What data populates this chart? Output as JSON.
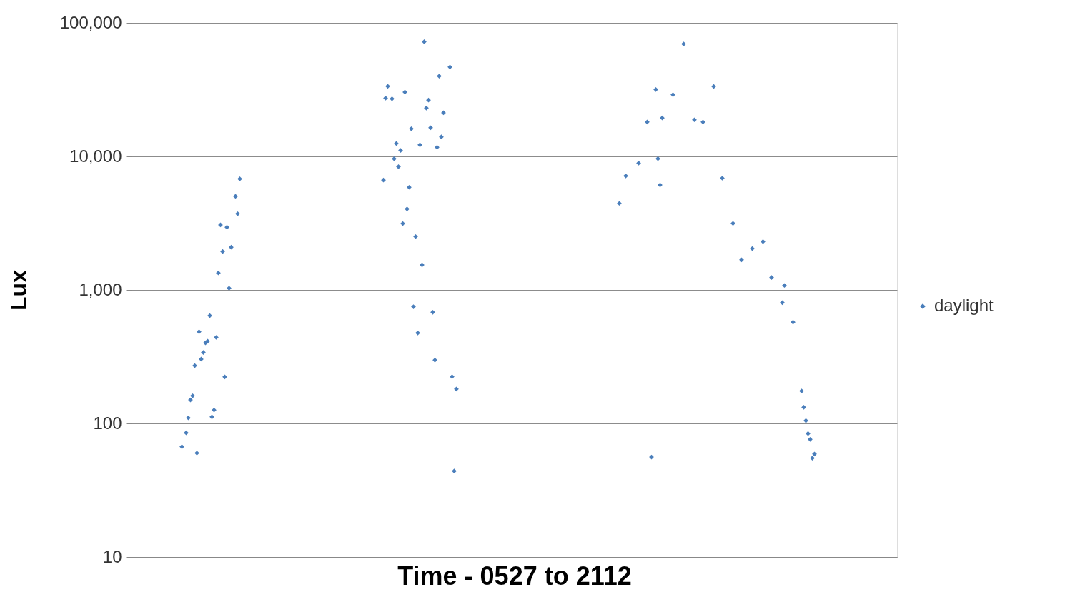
{
  "chart_data": {
    "type": "scatter",
    "xlabel": "Time - 0527 to 2112",
    "ylabel": "Lux",
    "log": "y",
    "grid": "y",
    "legend": "right",
    "marker": "diamond",
    "tick_labels": "y",
    "ylim": [
      10,
      100000
    ],
    "yticks": [
      {
        "value": 10,
        "label": "10"
      },
      {
        "value": 100,
        "label": "100"
      },
      {
        "value": 1000,
        "label": "1,000"
      },
      {
        "value": 10000,
        "label": "10,000"
      },
      {
        "value": 100000,
        "label": "100,000"
      }
    ],
    "categories": [
      null,
      null,
      null,
      null,
      null,
      null,
      null,
      null,
      null,
      null,
      null,
      null,
      null,
      null,
      null,
      null,
      null,
      null,
      null,
      null,
      null,
      null,
      null,
      null,
      null,
      null,
      null,
      null,
      null,
      null,
      null,
      null,
      null,
      null,
      null,
      null,
      null,
      null,
      null,
      null,
      null,
      null,
      null,
      null,
      null,
      null,
      null,
      null,
      null,
      null,
      null,
      null,
      null,
      null,
      null,
      null,
      null,
      null,
      null,
      null,
      null,
      null,
      null,
      null,
      null,
      null,
      null,
      null,
      null,
      null,
      null,
      null,
      null,
      null,
      null,
      null,
      null,
      null,
      null,
      null,
      null,
      null,
      null,
      null,
      null,
      null,
      null,
      null,
      null,
      null,
      null,
      null,
      null,
      null,
      null,
      null,
      null,
      null,
      null,
      null,
      null,
      null,
      null,
      null,
      null,
      null,
      null,
      null,
      null,
      null,
      null,
      null,
      null,
      null,
      null,
      null,
      null,
      null,
      null,
      null,
      null,
      null,
      null,
      null,
      null,
      null,
      null,
      null,
      null,
      null,
      null,
      null,
      null,
      null,
      null,
      null,
      null,
      null,
      null,
      null,
      null,
      null,
      null,
      null,
      null,
      null,
      null,
      null,
      null,
      null,
      null,
      null,
      null,
      null,
      null,
      null,
      null,
      null,
      null,
      null,
      null,
      null,
      null,
      null,
      null,
      null,
      null,
      null,
      null,
      null,
      null,
      null,
      null,
      null,
      null,
      null,
      null,
      null,
      null,
      null,
      null,
      null,
      null,
      null,
      null,
      null,
      null,
      null,
      null,
      null,
      null,
      null,
      null,
      null,
      null,
      null,
      null,
      null,
      null,
      null,
      null,
      null,
      null,
      null,
      null,
      null,
      null,
      null,
      null,
      null,
      null,
      null,
      null,
      null,
      null,
      null,
      null,
      null,
      null,
      null,
      null,
      null,
      null,
      null,
      null,
      null,
      null,
      null,
      null,
      null,
      null,
      null,
      null,
      null,
      null,
      null,
      null,
      null,
      null,
      null,
      null,
      null,
      null,
      null,
      null,
      null,
      null,
      null,
      null,
      null,
      null,
      null,
      null,
      null,
      null,
      null,
      null,
      null,
      null,
      null,
      null,
      null,
      null,
      null,
      null,
      null,
      null,
      null,
      null,
      null,
      null,
      null,
      null,
      null,
      null,
      null,
      null,
      null,
      null,
      null,
      null,
      null,
      null,
      null,
      null,
      null,
      null,
      null,
      null,
      null,
      null,
      null,
      null,
      null,
      null,
      null,
      null,
      null,
      null,
      null,
      null,
      null,
      null,
      null,
      null,
      null,
      null,
      null,
      null,
      null,
      null,
      null,
      null,
      null,
      null,
      null,
      null,
      null,
      null,
      null,
      null,
      null,
      null,
      null,
      null,
      null,
      null,
      null,
      null,
      null,
      null,
      null,
      null,
      null,
      null,
      null,
      null,
      null,
      null,
      null,
      null,
      null,
      null,
      null,
      null,
      null,
      null,
      null,
      null,
      null,
      null,
      null,
      null,
      null,
      null,
      null,
      null
    ],
    "series": [
      {
        "name": "daylight",
        "color": "#4a7ebb",
        "values": [
          null,
          null,
          null,
          null,
          null,
          null,
          null,
          null,
          null,
          null,
          null,
          null,
          null,
          null,
          null,
          null,
          null,
          null,
          null,
          null,
          null,
          null,
          null,
          67,
          null,
          85,
          110,
          150,
          161,
          271,
          60,
          486,
          303,
          340,
          401,
          413,
          641,
          112,
          126,
          441,
          1340,
          3070,
          1940,
          223,
          2950,
          1030,
          2090,
          null,
          5020,
          3720,
          6790,
          null,
          null,
          null,
          null,
          null,
          null,
          null,
          null,
          null,
          null,
          null,
          null,
          null,
          null,
          null,
          null,
          null,
          null,
          null,
          null,
          null,
          null,
          null,
          null,
          null,
          null,
          null,
          null,
          null,
          null,
          null,
          null,
          null,
          null,
          null,
          null,
          null,
          null,
          null,
          null,
          null,
          null,
          null,
          null,
          null,
          null,
          null,
          null,
          null,
          null,
          null,
          null,
          null,
          null,
          null,
          null,
          null,
          null,
          null,
          null,
          null,
          null,
          null,
          null,
          null,
          null,
          6650,
          27300,
          33500,
          null,
          27000,
          9600,
          12500,
          8370,
          11100,
          3140,
          30300,
          4040,
          5870,
          16100,
          748,
          2510,
          476,
          12200,
          1540,
          72200,
          23000,
          26400,
          16400,
          680,
          298,
          11700,
          39900,
          14000,
          21200,
          null,
          null,
          46700,
          224,
          44,
          181,
          null,
          null,
          null,
          null,
          null,
          null,
          null,
          null,
          null,
          null,
          null,
          null,
          null,
          null,
          null,
          null,
          null,
          null,
          null,
          null,
          null,
          null,
          null,
          null,
          null,
          null,
          null,
          null,
          null,
          null,
          null,
          null,
          null,
          null,
          null,
          null,
          null,
          null,
          null,
          null,
          null,
          null,
          null,
          null,
          null,
          null,
          null,
          null,
          null,
          null,
          null,
          null,
          null,
          null,
          null,
          null,
          null,
          null,
          null,
          null,
          null,
          null,
          null,
          null,
          null,
          null,
          null,
          null,
          null,
          null,
          null,
          null,
          null,
          null,
          null,
          4450,
          null,
          null,
          7140,
          null,
          null,
          null,
          null,
          null,
          8900,
          null,
          null,
          null,
          18100,
          null,
          56,
          null,
          31700,
          9620,
          6110,
          19400,
          null,
          null,
          null,
          null,
          29000,
          null,
          null,
          null,
          null,
          69500,
          null,
          null,
          null,
          null,
          18800,
          null,
          null,
          null,
          18100,
          null,
          null,
          null,
          null,
          33400,
          null,
          null,
          null,
          6870,
          null,
          null,
          null,
          null,
          3150,
          null,
          null,
          null,
          1680,
          null,
          null,
          null,
          null,
          2040,
          null,
          null,
          null,
          null,
          2300,
          null,
          null,
          null,
          1240,
          null,
          null,
          null,
          null,
          803,
          1080,
          null,
          null,
          null,
          573,
          null,
          null,
          null,
          175,
          132,
          105,
          84,
          76,
          55,
          59,
          null,
          null,
          null,
          null,
          null,
          null,
          null,
          null,
          null,
          null,
          null,
          null,
          null,
          null,
          null,
          null,
          null,
          null,
          null,
          null,
          null,
          null,
          null,
          null,
          null,
          null,
          null,
          null,
          null,
          null,
          null,
          null,
          null,
          null,
          null,
          null,
          null,
          null
        ]
      }
    ]
  }
}
